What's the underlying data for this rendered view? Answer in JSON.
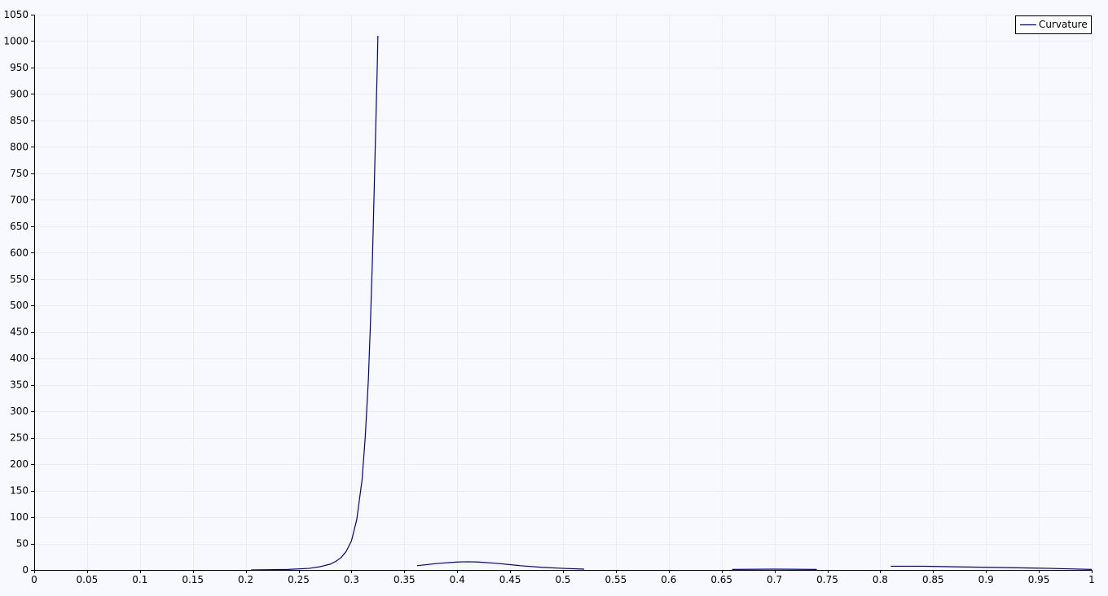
{
  "chart_data": {
    "type": "line",
    "legend_position": "top-right",
    "grid": true,
    "xlim": [
      0,
      1
    ],
    "ylim": [
      0,
      1050
    ],
    "x_ticks": [
      "0",
      "0.05",
      "0.1",
      "0.15",
      "0.2",
      "0.25",
      "0.3",
      "0.35",
      "0.4",
      "0.45",
      "0.5",
      "0.55",
      "0.6",
      "0.65",
      "0.7",
      "0.75",
      "0.8",
      "0.85",
      "0.9",
      "0.95",
      "1"
    ],
    "y_ticks": [
      "0",
      "50",
      "100",
      "150",
      "200",
      "250",
      "300",
      "350",
      "400",
      "450",
      "500",
      "550",
      "600",
      "650",
      "700",
      "750",
      "800",
      "850",
      "900",
      "950",
      "1000",
      "1050"
    ],
    "background_color": "#f8f9fe",
    "series": [
      {
        "name": "Curvature",
        "color": "#00008b",
        "segments": [
          [
            [
              0.205,
              0
            ],
            [
              0.22,
              0.5
            ],
            [
              0.24,
              1
            ],
            [
              0.25,
              2
            ],
            [
              0.26,
              3
            ],
            [
              0.27,
              6
            ],
            [
              0.28,
              11
            ],
            [
              0.285,
              16
            ],
            [
              0.29,
              23
            ],
            [
              0.295,
              35
            ],
            [
              0.3,
              55
            ],
            [
              0.305,
              95
            ],
            [
              0.31,
              170
            ],
            [
              0.313,
              250
            ],
            [
              0.316,
              360
            ],
            [
              0.318,
              470
            ],
            [
              0.32,
              600
            ],
            [
              0.322,
              760
            ],
            [
              0.3235,
              880
            ],
            [
              0.3245,
              960
            ],
            [
              0.325,
              1010
            ]
          ],
          [
            [
              0.362,
              8
            ],
            [
              0.38,
              12
            ],
            [
              0.4,
              15
            ],
            [
              0.41,
              15.5
            ],
            [
              0.42,
              15
            ],
            [
              0.44,
              12
            ],
            [
              0.46,
              8
            ],
            [
              0.48,
              5
            ],
            [
              0.5,
              3
            ],
            [
              0.52,
              1.5
            ]
          ],
          [
            [
              0.66,
              1
            ],
            [
              0.7,
              1.5
            ],
            [
              0.74,
              1
            ]
          ],
          [
            [
              0.81,
              7
            ],
            [
              0.84,
              7
            ],
            [
              0.87,
              6
            ],
            [
              0.9,
              5
            ],
            [
              0.93,
              4
            ],
            [
              0.96,
              3
            ],
            [
              0.98,
              2
            ],
            [
              1.0,
              1
            ]
          ]
        ]
      }
    ]
  }
}
